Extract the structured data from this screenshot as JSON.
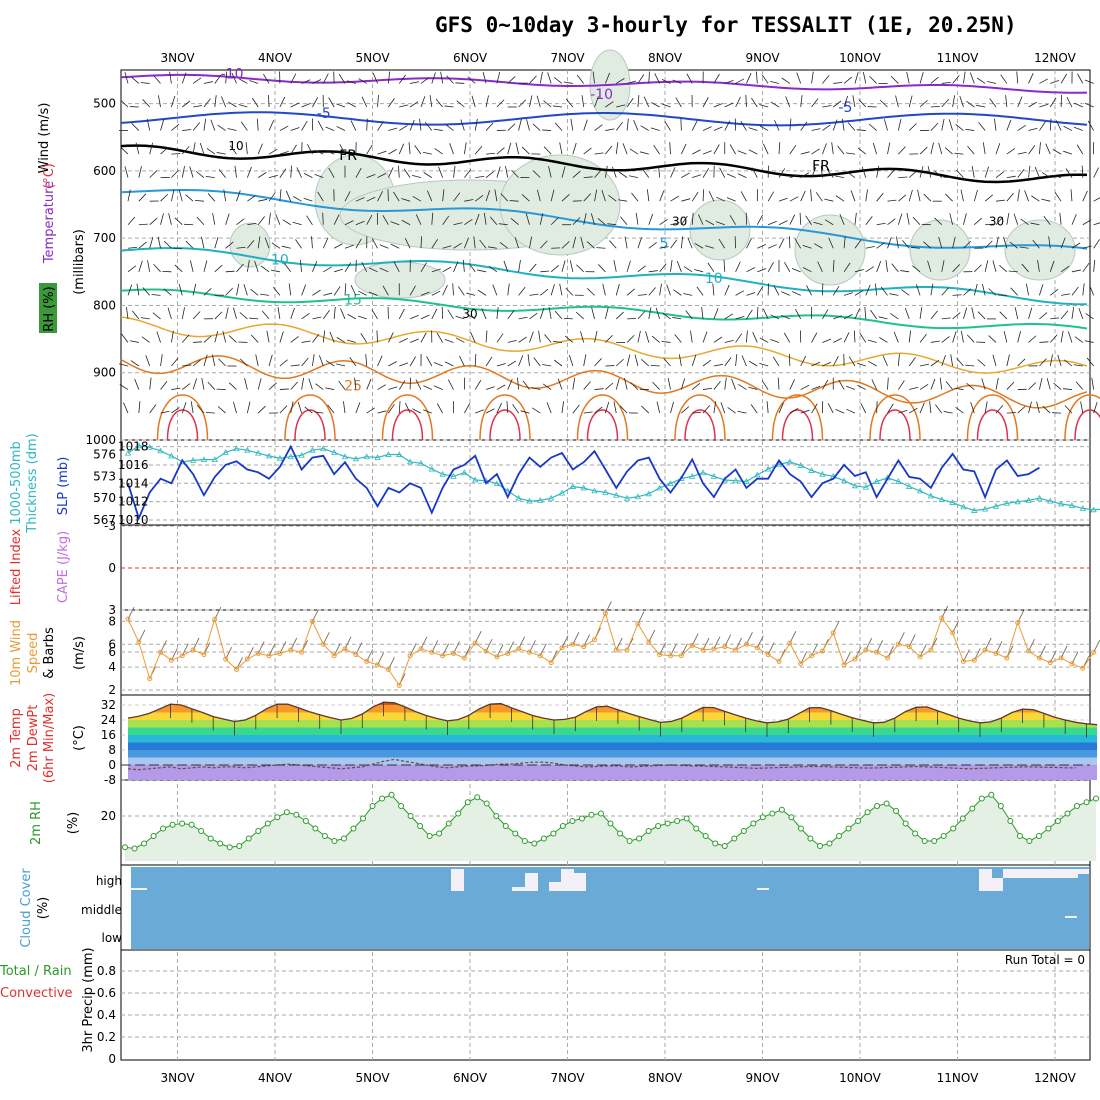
{
  "title": "GFS 0~10day 3-hourly for TESSALIT (1E, 20.25N)",
  "dates": [
    "3NOV",
    "4NOV",
    "5NOV",
    "6NOV",
    "7NOV",
    "8NOV",
    "9NOV",
    "10NOV",
    "11NOV",
    "12NOV"
  ],
  "panel_labels": {
    "upper": {
      "wind": "Wind (m/s)",
      "temperature": "Temperature",
      "temp_unit": "(°C)",
      "rh": "RH (%)",
      "pressure": "(millibars)"
    },
    "thickness": {
      "l1": "1000-500mb",
      "l2": "Thickness (dm)",
      "slp": "SLP (mb)"
    },
    "stability": {
      "li": "Lifted Index",
      "cape": "CAPE (J/kg)"
    },
    "wind10m": {
      "l1": "10m Wind",
      "l2": "Speed",
      "l3": "& Barbs",
      "unit": "(m/s)"
    },
    "temp2m": {
      "l1": "2m Temp",
      "l2": "2m DewPt",
      "l3": "(6hr Min/Max)",
      "unit": "(°C)"
    },
    "rh2m": {
      "l1": "2m RH",
      "unit": "(%)"
    },
    "cloud": {
      "l1": "Cloud Cover",
      "unit": "(%)",
      "high": "high",
      "middle": "middle",
      "low": "low"
    },
    "precip": {
      "l1": "Total / Rain",
      "l2": "Convective",
      "l3": "3hr Precip (mm)",
      "run_total": "Run Total = 0"
    }
  },
  "colors": {
    "slp": "#1838c8",
    "thickness": "#30b8c0",
    "wind_speed": "#e89c38",
    "rh": "#2a9a2a",
    "rh_fill": "#e4f0e4",
    "cloud_base": "#6aaad6",
    "cloud_gap": "#f4f0f8",
    "cape_label": "#c070e0",
    "li_label": "#e03030",
    "dewpt": "#a8a0c8"
  },
  "chart_data": [
    {
      "type": "line",
      "name": "upper_air_cross_section",
      "ylabel": "(millibars)",
      "y_ticks": [
        500,
        600,
        700,
        800,
        900,
        1000
      ],
      "ylim": [
        1000,
        450
      ],
      "grid": true,
      "isotherm_labels": [
        {
          "text": "-10",
          "color": "#8a2ac8",
          "x": 0.56,
          "y": 455
        },
        {
          "text": "-10",
          "color": "#8a2ac8",
          "x": 4.35,
          "y": 486
        },
        {
          "text": "-5",
          "color": "#2048c8",
          "x": 1.5,
          "y": 514
        },
        {
          "text": "-5",
          "color": "#2048c8",
          "x": 6.85,
          "y": 505
        },
        {
          "text": "FR",
          "color": "#000000",
          "x": 1.75,
          "y": 576
        },
        {
          "text": "FR",
          "color": "#000000",
          "x": 6.6,
          "y": 592
        },
        {
          "text": "5",
          "color": "#2898d8",
          "x": 4.99,
          "y": 707
        },
        {
          "text": "10",
          "color": "#20b0c0",
          "x": 1.05,
          "y": 732
        },
        {
          "text": "10",
          "color": "#20b0c0",
          "x": 5.5,
          "y": 759
        },
        {
          "text": "15",
          "color": "#20c090",
          "x": 1.8,
          "y": 791
        },
        {
          "text": "25",
          "color": "#e07820",
          "x": 1.8,
          "y": 919
        }
      ],
      "rh_labels": [
        {
          "text": "10",
          "x": 0.6,
          "y": 563
        },
        {
          "text": "30",
          "x": 5.15,
          "y": 675
        },
        {
          "text": "30",
          "x": 8.4,
          "y": 675
        },
        {
          "text": "30",
          "x": 3.0,
          "y": 813
        }
      ]
    },
    {
      "type": "line",
      "name": "thickness_slp",
      "y_ticks_left": [
        567,
        570,
        573,
        576
      ],
      "y_ticks_right": [
        1010,
        1012,
        1014,
        1016,
        1018
      ],
      "series": [
        {
          "name": "SLP (mb)",
          "values": [
            1014,
            1010.2,
            1013,
            1014.5,
            1014,
            1016.5,
            1015,
            1012.7,
            1014.7,
            1016,
            1016.4,
            1015.5,
            1015.2,
            1014.5,
            1015.8,
            1018,
            1015.5,
            1016.8,
            1017,
            1015,
            1016.3,
            1014.5,
            1013.5,
            1011.5,
            1013.5,
            1013,
            1014,
            1013.5,
            1010.8,
            1013.5,
            1015.5,
            1016,
            1017,
            1014,
            1015,
            1012.5,
            1015,
            1016.8,
            1015.8,
            1016.8,
            1017.3,
            1015.5,
            1016.3,
            1017.5,
            1015.5,
            1013.5,
            1015.3,
            1016.5,
            1016.8,
            1014.5,
            1013,
            1014.6,
            1016.6,
            1014,
            1012.5,
            1014.5,
            1015.5,
            1013.5,
            1014.5,
            1014.5,
            1016.5,
            1015,
            1014.2,
            1012.5,
            1014,
            1014.5,
            1016,
            1014.8,
            1015.2,
            1012.5,
            1014.5,
            1016.5,
            1014.7,
            1014.5,
            1013.5,
            1015.7,
            1017.2,
            1015.5,
            1015.3,
            1012.5,
            1015.5,
            1016.5,
            1014.8,
            1015,
            1015.7
          ]
        },
        {
          "name": "1000-500mb Thickness (dm)",
          "values": [
            576.2,
            577.2,
            577,
            576.5,
            575.8,
            575,
            575.2,
            575.3,
            575.3,
            576.3,
            576.8,
            576.6,
            576.2,
            575.8,
            575.5,
            575.7,
            575.9,
            576.6,
            576.8,
            576.3,
            575.7,
            575.4,
            575.7,
            575.6,
            576.0,
            576.0,
            575.0,
            574.8,
            574.0,
            573.3,
            573.0,
            573.5,
            572.5,
            572.4,
            572.0,
            571.0,
            570.0,
            569.6,
            569.7,
            570.0,
            570.7,
            571.6,
            571.4,
            571.0,
            570.8,
            570.4,
            570.0,
            570.2,
            570.6,
            571.4,
            572.0,
            572.7,
            573.0,
            573.5,
            573.0,
            572.5,
            572.4,
            572.3,
            573.2,
            574.0,
            574.6,
            575.0,
            574.5,
            573.8,
            573.3,
            573.0,
            572.4,
            571.7,
            571.5,
            572.3,
            572.8,
            572.3,
            571.6,
            571.0,
            570.3,
            569.8,
            569.4,
            568.8,
            568.3,
            568.5,
            568.9,
            569.3,
            569.5,
            569.7,
            570.0,
            569.6,
            569.2,
            569.0,
            568.6,
            568.4,
            568.5
          ]
        }
      ]
    },
    {
      "type": "line",
      "name": "lifted_index_cape",
      "y_ticks": [
        -3,
        0,
        3,
        6
      ],
      "series": [
        {
          "name": "Lifted Index",
          "values": []
        }
      ]
    },
    {
      "type": "line",
      "name": "wind_10m",
      "y_ticks": [
        2,
        4,
        6,
        8
      ],
      "ylim": [
        2,
        9
      ],
      "series": [
        {
          "name": "10m Wind Speed",
          "values": [
            8.2,
            6.2,
            3.0,
            5.3,
            4.6,
            5.0,
            5.5,
            5.1,
            8.2,
            4.7,
            3.8,
            4.7,
            5.2,
            5.0,
            5.2,
            5.5,
            5.3,
            8.0,
            6.0,
            5.0,
            5.6,
            5.1,
            4.5,
            4.2,
            3.8,
            2.4,
            5.0,
            5.6,
            5.3,
            5.0,
            5.2,
            4.8,
            6.1,
            5.4,
            4.9,
            5.2,
            5.6,
            5.3,
            5.0,
            4.4,
            5.7,
            6.0,
            5.8,
            6.4,
            8.7,
            5.5,
            5.5,
            7.8,
            6.2,
            5.1,
            5.0,
            5.0,
            5.9,
            5.5,
            5.6,
            5.8,
            5.5,
            6.0,
            5.7,
            5.1,
            4.5,
            6.1,
            4.3,
            5.0,
            5.4,
            7.0,
            4.2,
            4.7,
            5.5,
            5.3,
            4.8,
            6.0,
            5.8,
            4.9,
            5.5,
            8.3,
            7.0,
            4.5,
            4.6,
            5.5,
            5.2,
            4.8,
            7.9,
            5.4,
            4.8,
            4.4,
            4.8,
            4.3,
            3.9,
            5.3
          ]
        }
      ]
    },
    {
      "type": "area",
      "name": "temp_2m",
      "y_ticks": [
        -8,
        0,
        8,
        16,
        24,
        32
      ],
      "series": [
        {
          "name": "2m Temp",
          "values": [
            25.0,
            26.0,
            27.5,
            30.0,
            32.5,
            32.0,
            30.0,
            28.0,
            25.8,
            24.5,
            23.2,
            24.0,
            26.5,
            30.0,
            32.5,
            32.5,
            30.5,
            28.5,
            26.8,
            25.3,
            24.0,
            24.8,
            27.2,
            31.0,
            33.5,
            33.2,
            31.0,
            28.5,
            26.4,
            24.8,
            23.5,
            24.2,
            26.5,
            30.0,
            32.5,
            32.8,
            30.5,
            28.5,
            26.4,
            25.0,
            24.0,
            24.3,
            25.5,
            28.5,
            31.0,
            31.3,
            29.5,
            27.5,
            25.8,
            24.2,
            22.7,
            23.2,
            25.0,
            28.0,
            30.7,
            30.6,
            28.7,
            26.8,
            25.0,
            23.5,
            22.5,
            23.0,
            24.5,
            27.5,
            30.5,
            30.6,
            29.0,
            27.0,
            25.2,
            23.8,
            22.5,
            22.8,
            25.0,
            28.5,
            30.8,
            31.0,
            29.0,
            27.0,
            25.0,
            23.5,
            22.5,
            23.0,
            25.0,
            28.0,
            29.8,
            29.5,
            27.5,
            25.5,
            24.0,
            22.8,
            22.0,
            21.5
          ]
        },
        {
          "name": "2m DewPt",
          "values": [
            -2,
            -2.5,
            -2,
            -1.5,
            -1,
            -2,
            -1.5,
            -1,
            -1.5,
            -1,
            -1,
            -1.5,
            -1,
            -0.5,
            0,
            0.5,
            0,
            -0.5,
            -1,
            -1.5,
            -2,
            -1.5,
            -1,
            0.5,
            2,
            3,
            2,
            1,
            0,
            -1,
            -1.5,
            -1,
            -0.5,
            -0.5,
            0,
            0.5,
            0.5,
            1,
            1.5,
            1.5,
            1,
            0,
            -0.5,
            -1,
            -0.8,
            -0.5,
            -0.5,
            -1,
            -0.8,
            -0.5,
            -0.2,
            0,
            -0.2,
            -0.5,
            -0.6,
            -0.8,
            -1,
            -1.3,
            -1.5,
            -1.8,
            -1.6,
            -1.4,
            -1.2,
            -1,
            -0.8,
            -0.8,
            -1,
            -1.2,
            -1.4,
            -1.6,
            -1.6,
            -1.4,
            -1.2,
            -1,
            -0.8,
            -1,
            -1.2,
            -1.5,
            -1.8,
            -2,
            -1.8,
            -1.6,
            -1.4,
            -1.2,
            -1,
            -1,
            -1.2,
            -1.3,
            -1.5,
            -1.5
          ]
        }
      ]
    },
    {
      "type": "area",
      "name": "rh_2m",
      "y_ticks": [
        20
      ],
      "ylim": [
        2,
        34
      ],
      "series": [
        {
          "name": "2m RH",
          "values": [
            7.5,
            7,
            9,
            12,
            15,
            16.5,
            17,
            16.5,
            14,
            11,
            9,
            7.5,
            8,
            11,
            14,
            17,
            19.5,
            21.5,
            20.5,
            18,
            15,
            12,
            10,
            11,
            15,
            19,
            24,
            27,
            28.5,
            24,
            20,
            16,
            12,
            13,
            17,
            21,
            25.5,
            27.5,
            25,
            20,
            16,
            13,
            10,
            9,
            11,
            13,
            16,
            18,
            19,
            20.5,
            21,
            17,
            13,
            10,
            11,
            14,
            16,
            17,
            18,
            19,
            15,
            12,
            9,
            8,
            11,
            14,
            17,
            19.5,
            21,
            22.5,
            19.5,
            15,
            11,
            8,
            9,
            12,
            15,
            18,
            21.5,
            24,
            25,
            22,
            17,
            13,
            10,
            10,
            12,
            15,
            19,
            23,
            27,
            28.5,
            24,
            18,
            12,
            10,
            12,
            15,
            18,
            21,
            24,
            25.5,
            27
          ]
        }
      ]
    },
    {
      "type": "bar",
      "name": "cloud_cover",
      "categories": [
        "high",
        "middle",
        "low"
      ]
    },
    {
      "type": "bar",
      "name": "precip_3hr",
      "ylabel": "3hr Precip (mm)",
      "y_ticks": [
        0,
        0.2,
        0.4,
        0.6,
        0.8
      ],
      "ylim": [
        0,
        1
      ],
      "values": []
    }
  ]
}
